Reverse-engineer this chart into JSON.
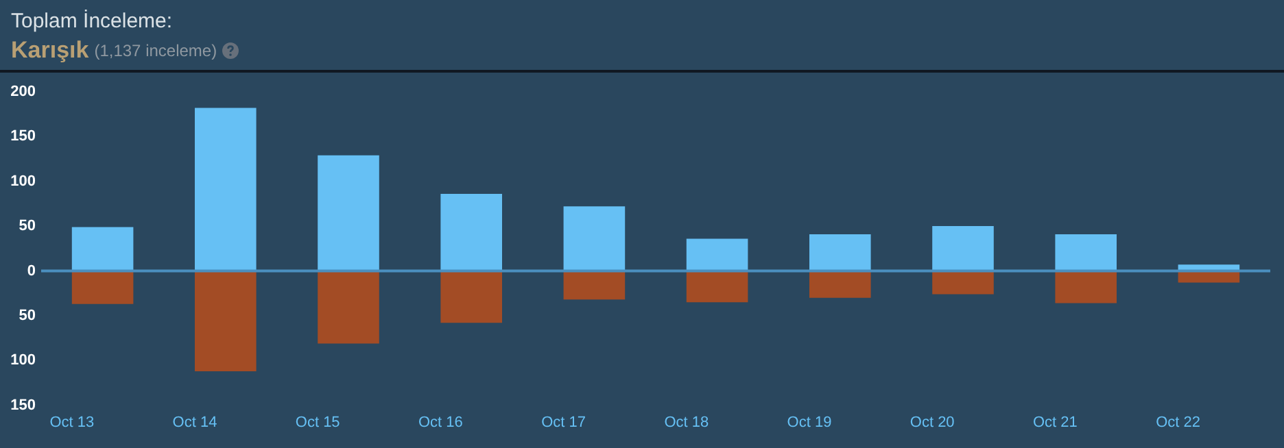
{
  "chart_data": {
    "type": "bar",
    "title": "Toplam İnceleme:",
    "subtitle": "Karışık",
    "annotations": [
      "(1,137 inceleme)"
    ],
    "categories": [
      "Oct 13",
      "Oct 14",
      "Oct 15",
      "Oct 16",
      "Oct 17",
      "Oct 18",
      "Oct 19",
      "Oct 20",
      "Oct 21",
      "Oct 22"
    ],
    "series": [
      {
        "color": "#66c0f4",
        "values": [
          49,
          182,
          129,
          86,
          72,
          36,
          41,
          50,
          41,
          7
        ]
      },
      {
        "color": "#a34c25",
        "values": [
          -37,
          -112,
          -81,
          -58,
          -32,
          -35,
          -30,
          -26,
          -36,
          -13
        ]
      }
    ],
    "stacked": true,
    "ylim": [
      -150,
      200
    ],
    "yticks": [
      {
        "value": -150,
        "label": "150"
      },
      {
        "value": -100,
        "label": "100"
      },
      {
        "value": -50,
        "label": "50"
      },
      0,
      50,
      100,
      150,
      200
    ],
    "ref_lines": [
      {
        "axis": "y",
        "value": 0,
        "color": "#4b8fbf"
      }
    ],
    "grid": false,
    "legend": false
  }
}
